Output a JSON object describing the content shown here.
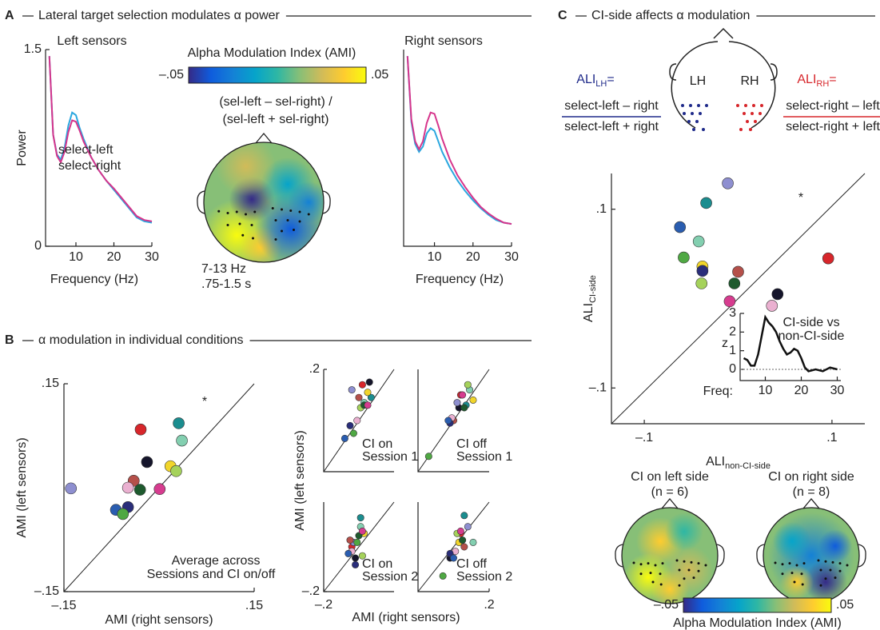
{
  "panels": [
    {
      "letter": "A",
      "title": "Lateral target selection modulates α power"
    },
    {
      "letter": "B",
      "title": "α modulation in individual conditions"
    },
    {
      "letter": "C",
      "title": "CI-side affects α modulation"
    }
  ],
  "chart_data": [
    {
      "type": "line",
      "title": "Left sensors",
      "xlabel": "Frequency (Hz)",
      "ylabel": "Power",
      "x": [
        3,
        4,
        5,
        6,
        7,
        8,
        9,
        10,
        11,
        12,
        14,
        16,
        18,
        20,
        22,
        24,
        26,
        28,
        30
      ],
      "xlim": [
        2,
        30
      ],
      "xticks": [
        10,
        20,
        30
      ],
      "ylim": [
        0,
        1.5
      ],
      "yticks": [
        0,
        1.5
      ],
      "legend": "center",
      "series": [
        {
          "name": "select-left",
          "color": "#2aa7df",
          "values": [
            1.45,
            0.85,
            0.7,
            0.66,
            0.75,
            0.92,
            1.02,
            1.0,
            0.9,
            0.82,
            0.68,
            0.58,
            0.5,
            0.43,
            0.36,
            0.29,
            0.22,
            0.19,
            0.18
          ]
        },
        {
          "name": "select-right",
          "color": "#d6348b",
          "values": [
            1.45,
            0.85,
            0.69,
            0.64,
            0.72,
            0.87,
            0.96,
            0.95,
            0.88,
            0.8,
            0.68,
            0.58,
            0.5,
            0.44,
            0.37,
            0.3,
            0.23,
            0.2,
            0.19
          ]
        }
      ]
    },
    {
      "type": "line",
      "title": "Right sensors",
      "xlabel": "Frequency (Hz)",
      "x": [
        3,
        4,
        5,
        6,
        7,
        8,
        9,
        10,
        11,
        12,
        14,
        16,
        18,
        20,
        22,
        24,
        26,
        28,
        30
      ],
      "xlim": [
        2,
        30
      ],
      "xticks": [
        10,
        20,
        30
      ],
      "ylim": [
        0,
        1.5
      ],
      "series": [
        {
          "color": "#2aa7df",
          "values": [
            1.45,
            0.95,
            0.78,
            0.72,
            0.76,
            0.86,
            0.9,
            0.88,
            0.8,
            0.72,
            0.6,
            0.5,
            0.42,
            0.35,
            0.29,
            0.24,
            0.2,
            0.18,
            0.17
          ]
        },
        {
          "color": "#d6348b",
          "values": [
            1.45,
            0.97,
            0.8,
            0.74,
            0.8,
            0.94,
            1.02,
            1.01,
            0.92,
            0.82,
            0.66,
            0.54,
            0.45,
            0.37,
            0.3,
            0.25,
            0.21,
            0.18,
            0.17
          ]
        }
      ]
    },
    {
      "type": "topomap",
      "title": "Alpha Modulation Index (AMI)",
      "formula": [
        "(sel-left – sel-right) /",
        "(sel-left + sel-right)"
      ],
      "annotations": [
        "7-13 Hz",
        ".75-1.5 s"
      ],
      "colorbar": {
        "lim": [
          -0.05,
          0.05
        ],
        "ticks": [
          {
            "value": -0.05,
            "label": "–.05"
          },
          {
            "value": 0.05,
            "label": ".05"
          }
        ]
      },
      "colormap": [
        "#352a87",
        "#0f5cdd",
        "#1481d6",
        "#06a4ca",
        "#2eb7a4",
        "#87bf77",
        "#d1bb59",
        "#fecc2f",
        "#f9fb0e"
      ]
    },
    {
      "type": "scatter",
      "xlabel": "AMI (right sensors)",
      "ylabel": "AMI (left sensors)",
      "xlim": [
        -0.15,
        0.15
      ],
      "ylim": [
        -0.15,
        0.15
      ],
      "xticks": [
        {
          "value": -0.15,
          "label": "–.15"
        },
        {
          "value": 0.15,
          "label": ".15"
        }
      ],
      "yticks": [
        {
          "value": -0.15,
          "label": "–.15"
        },
        {
          "value": 0.15,
          "label": ".15"
        }
      ],
      "annotations": [
        "*",
        "Average across",
        "Sessions and CI on/off"
      ],
      "colors": [
        "#d7262b",
        "#1b8d8f",
        "#83cfb0",
        "#15152b",
        "#f1d52b",
        "#a5d25b",
        "#8e8fd0",
        "#b5504a",
        "#eab0d0",
        "#1e5a2e",
        "#d63c8f",
        "#2a2e7a",
        "#2a5db0",
        "#4fa843"
      ],
      "x": [
        -0.029,
        0.031,
        0.036,
        -0.019,
        0.018,
        0.027,
        -0.139,
        -0.04,
        -0.049,
        -0.03,
        0.001,
        -0.049,
        -0.068,
        -0.057
      ],
      "values": [
        0.084,
        0.093,
        0.068,
        0.037,
        0.031,
        0.024,
        -0.001,
        0.01,
        0.0,
        -0.003,
        -0.002,
        -0.028,
        -0.032,
        -0.038
      ]
    },
    {
      "type": "scatter-grid",
      "xlabel": "AMI (right sensors)",
      "ylabel": "AMI (left sensors)",
      "xlim": [
        -0.2,
        0.2
      ],
      "ylim": [
        -0.2,
        0.2
      ],
      "xticks": [
        {
          "value": -0.2,
          "label": "–.2"
        },
        {
          "value": 0.2,
          "label": ".2"
        }
      ],
      "yticks": [
        {
          "value": -0.2,
          "label": "–.2"
        },
        {
          "value": 0.2,
          "label": ".2"
        }
      ],
      "colors": [
        "#d7262b",
        "#1b8d8f",
        "#83cfb0",
        "#15152b",
        "#f1d52b",
        "#a5d25b",
        "#8e8fd0",
        "#b5504a",
        "#eab0d0",
        "#1e5a2e",
        "#d63c8f",
        "#2a2e7a",
        "#2a5db0",
        "#4fa843"
      ],
      "panels": [
        {
          "annotation": [
            "CI on",
            "Session 1"
          ],
          "x": [
            0.02,
            0.07,
            0.03,
            0.06,
            0.05,
            0.01,
            -0.04,
            0.0,
            -0.01,
            0.03,
            0.05,
            -0.05,
            -0.08,
            -0.03
          ],
          "values": [
            0.14,
            0.09,
            0.07,
            0.15,
            0.11,
            0.05,
            0.12,
            0.09,
            0.0,
            0.06,
            0.06,
            -0.02,
            -0.07,
            -0.05
          ]
        },
        {
          "annotation": [
            "CI off",
            "Session 1"
          ],
          "x": [
            0.04,
            0.07,
            0.09,
            0.03,
            0.11,
            0.08,
            0.02,
            0.0,
            -0.01,
            0.06,
            0.05,
            -0.02,
            -0.03,
            -0.14
          ],
          "values": [
            0.1,
            0.06,
            0.12,
            0.05,
            0.08,
            0.14,
            0.07,
            0.0,
            0.01,
            0.05,
            0.1,
            -0.01,
            0.0,
            -0.14
          ]
        },
        {
          "annotation": [
            "CI on",
            "Session 2"
          ],
          "x": [
            -0.04,
            0.01,
            0.01,
            -0.02,
            0.03,
            0.02,
            -0.03,
            -0.05,
            -0.04,
            0.0,
            0.02,
            -0.02,
            -0.06,
            -0.01
          ],
          "values": [
            0.0,
            0.13,
            0.09,
            -0.05,
            0.06,
            -0.04,
            0.02,
            0.03,
            -0.02,
            0.05,
            0.07,
            -0.08,
            -0.03,
            0.02
          ]
        },
        {
          "annotation": [
            "CI off",
            "Session 2"
          ],
          "x": [
            0.04,
            0.06,
            0.11,
            -0.02,
            0.03,
            0.02,
            0.08,
            0.06,
            0.01,
            0.05,
            0.04,
            -0.02,
            0.0,
            -0.06
          ],
          "values": [
            0.06,
            0.14,
            0.02,
            -0.05,
            0.02,
            0.06,
            0.09,
            0.0,
            -0.02,
            0.03,
            0.07,
            -0.03,
            -0.05,
            -0.13
          ]
        }
      ]
    },
    {
      "type": "scatter",
      "xlabel": {
        "text": "ALI",
        "sub": "non-CI-side"
      },
      "ylabel": {
        "text": "ALI",
        "sub": "CI-side"
      },
      "xlim": [
        -0.135,
        0.135
      ],
      "ylim": [
        -0.14,
        0.14
      ],
      "xticks": [
        {
          "value": -0.1,
          "label": "–.1"
        },
        {
          "value": 0.1,
          "label": ".1"
        }
      ],
      "yticks": [
        {
          "value": -0.1,
          "label": "–.1"
        },
        {
          "value": 0.1,
          "label": ".1"
        }
      ],
      "annotations": [
        "*"
      ],
      "head": [
        "LH",
        "RH"
      ],
      "formulas": [
        {
          "name": "ALI",
          "sub": "LH",
          "eq": "=",
          "num": "select-left – right",
          "den": "select-left + right",
          "color": "#1f2a8a"
        },
        {
          "name": "ALI",
          "sub": "RH",
          "eq": "=",
          "num": "select-right – left",
          "den": "select-right + left",
          "color": "#d7262b"
        }
      ],
      "colors": [
        "#8e8fd0",
        "#1b8d8f",
        "#2a5db0",
        "#83cfb0",
        "#4fa843",
        "#f1d52b",
        "#2a2e7a",
        "#b5504a",
        "#a5d25b",
        "#1e5a2e",
        "#d7262b",
        "#15152b",
        "#d63c8f",
        "#eab0d0"
      ],
      "x": [
        -0.011,
        -0.034,
        -0.062,
        -0.042,
        -0.058,
        -0.038,
        -0.038,
        0.0,
        -0.039,
        -0.004,
        0.096,
        0.042,
        -0.009,
        0.036
      ],
      "values": [
        0.129,
        0.107,
        0.08,
        0.064,
        0.046,
        0.036,
        0.031,
        0.03,
        0.017,
        0.017,
        0.045,
        0.005,
        -0.003,
        -0.008
      ]
    },
    {
      "type": "line",
      "title": [
        "CI-side vs",
        "non-CI-side"
      ],
      "xlabel": "Freq:",
      "ylabel": "z",
      "x": [
        4,
        5,
        6,
        7,
        8,
        9,
        10,
        11,
        12,
        13,
        14,
        15,
        16,
        17,
        18,
        19,
        20,
        21,
        22,
        24,
        26,
        28,
        30
      ],
      "xlim": [
        3,
        31
      ],
      "xticks": [
        10,
        20,
        30
      ],
      "ylim": [
        -0.6,
        3
      ],
      "yticks": [
        0,
        1,
        2,
        3
      ],
      "series": [
        {
          "color": "#111111",
          "values": [
            0.6,
            0.5,
            0.2,
            0.2,
            0.8,
            1.8,
            2.8,
            2.5,
            2.3,
            2.0,
            1.5,
            1.1,
            0.8,
            0.9,
            1.1,
            1.0,
            0.6,
            0.1,
            -0.1,
            0.0,
            -0.1,
            0.1,
            0.0
          ]
        }
      ]
    },
    {
      "type": "topomap",
      "maps": [
        {
          "title": "CI on left side",
          "subtitle": "(n = 6)"
        },
        {
          "title": "CI on right side",
          "subtitle": "(n = 8)"
        }
      ],
      "colorbar": {
        "lim": [
          -0.05,
          0.05
        ],
        "ticks": [
          {
            "value": -0.05,
            "label": "–.05"
          },
          {
            "value": 0.05,
            "label": ".05"
          }
        ],
        "label": "Alpha Modulation Index (AMI)"
      },
      "colormap": [
        "#352a87",
        "#0f5cdd",
        "#1481d6",
        "#06a4ca",
        "#2eb7a4",
        "#87bf77",
        "#d1bb59",
        "#fecc2f",
        "#f9fb0e"
      ]
    }
  ]
}
